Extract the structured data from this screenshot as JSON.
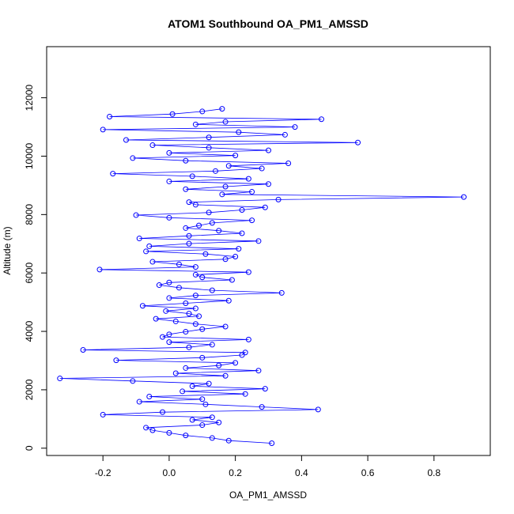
{
  "chart_data": {
    "type": "line",
    "title": "ATOM1 Southbound OA_PM1_AMSSD",
    "xlabel": "OA_PM1_AMSSD",
    "ylabel": "Altitude (m)",
    "xlim": [
      -0.37,
      0.97
    ],
    "ylim": [
      -250,
      13750
    ],
    "xticks": [
      -0.2,
      0.0,
      0.2,
      0.4,
      0.6,
      0.8
    ],
    "xtick_labels": [
      "-0.2",
      "0.0",
      "0.2",
      "0.4",
      "0.6",
      "0.8"
    ],
    "yticks": [
      0,
      2000,
      4000,
      6000,
      8000,
      10000,
      12000
    ],
    "ytick_labels": [
      "0",
      "2000",
      "4000",
      "6000",
      "8000",
      "10000",
      "12000"
    ],
    "grid": false,
    "legend": "none",
    "series": [
      {
        "color": "#0000ff",
        "marker": "open-circle",
        "x": [
          0.31,
          0.18,
          0.13,
          0.05,
          0.0,
          -0.05,
          -0.07,
          0.1,
          0.15,
          0.07,
          0.13,
          -0.2,
          -0.02,
          0.45,
          0.28,
          0.11,
          -0.09,
          0.1,
          -0.06,
          0.23,
          0.04,
          0.29,
          0.07,
          0.12,
          -0.11,
          -0.33,
          0.17,
          0.02,
          0.27,
          0.05,
          0.15,
          0.2,
          -0.16,
          0.1,
          0.22,
          0.23,
          -0.26,
          0.06,
          0.13,
          0.0,
          0.24,
          -0.02,
          0.0,
          0.05,
          0.1,
          0.17,
          0.08,
          0.02,
          -0.04,
          0.09,
          0.06,
          -0.01,
          0.08,
          -0.08,
          0.05,
          0.18,
          0.0,
          0.08,
          0.34,
          0.13,
          0.03,
          -0.03,
          0.0,
          0.19,
          0.1,
          0.08,
          0.24,
          -0.21,
          0.08,
          0.03,
          -0.05,
          0.17,
          0.2,
          0.11,
          -0.07,
          0.21,
          -0.06,
          0.06,
          0.27,
          -0.09,
          0.06,
          0.22,
          0.15,
          0.05,
          0.09,
          0.13,
          0.25,
          0.0,
          -0.1,
          0.12,
          0.22,
          0.29,
          0.08,
          0.06,
          0.33,
          0.89,
          0.16,
          0.25,
          0.05,
          0.17,
          0.3,
          0.0,
          0.24,
          0.07,
          -0.17,
          0.14,
          0.28,
          0.18,
          0.36,
          0.05,
          -0.11,
          0.2,
          0.0,
          0.3,
          0.12,
          -0.05,
          0.57,
          -0.13,
          0.12,
          0.35,
          0.21,
          -0.2,
          0.38,
          0.08,
          0.17,
          0.46,
          -0.18,
          0.01,
          0.1,
          0.16
        ]
      }
    ]
  }
}
